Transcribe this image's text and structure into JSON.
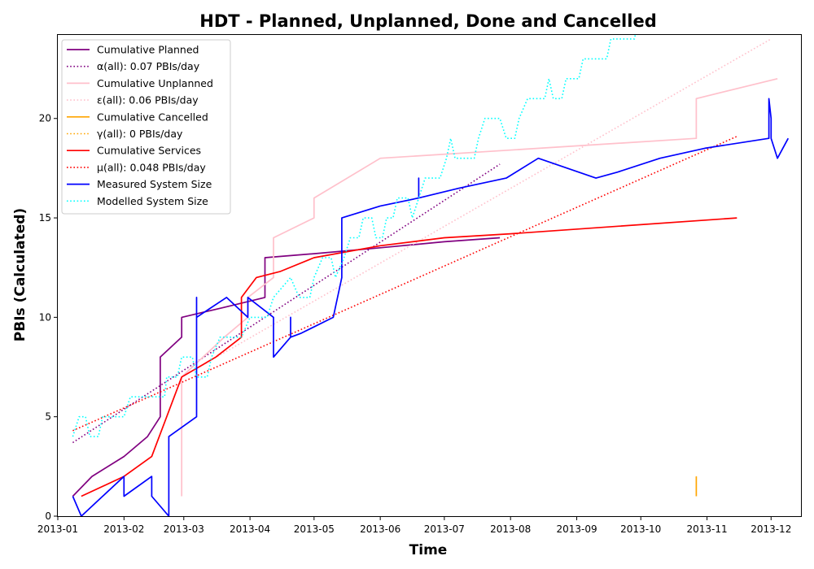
{
  "chart_data": {
    "type": "line",
    "title": "HDT - Planned, Unplanned, Done  and Cancelled",
    "xlabel": "Time",
    "ylabel": "PBIs (Calculated)",
    "xlim": [
      "2013-01-01",
      "2013-12-15"
    ],
    "ylim": [
      0,
      24.2
    ],
    "x_ticks": [
      "2013-01",
      "2013-02",
      "2013-03",
      "2013-04",
      "2013-05",
      "2013-06",
      "2013-07",
      "2013-08",
      "2013-09",
      "2013-10",
      "2013-11",
      "2013-12"
    ],
    "y_ticks": [
      0,
      5,
      10,
      15,
      20
    ],
    "grid": false,
    "legend_position": "upper-left",
    "series": [
      {
        "name": "Cumulative Planned",
        "color": "#800080",
        "style": "solid",
        "points": [
          [
            "2013-01-08",
            1
          ],
          [
            "2013-01-17",
            2
          ],
          [
            "2013-02-01",
            3
          ],
          [
            "2013-02-12",
            4
          ],
          [
            "2013-02-18",
            5
          ],
          [
            "2013-02-18",
            8
          ],
          [
            "2013-02-28",
            9
          ],
          [
            "2013-02-28",
            10
          ],
          [
            "2013-03-20",
            10.5
          ],
          [
            "2013-04-08",
            11
          ],
          [
            "2013-04-08",
            13
          ],
          [
            "2013-05-01",
            13.2
          ],
          [
            "2013-06-01",
            13.5
          ],
          [
            "2013-07-01",
            13.8
          ],
          [
            "2013-07-27",
            14
          ]
        ]
      },
      {
        "name": "α(all): 0.07 PBIs/day",
        "color": "#800080",
        "style": "dotted",
        "points": [
          [
            "2013-01-08",
            3.7
          ],
          [
            "2013-07-27",
            17.7
          ]
        ]
      },
      {
        "name": "Cumulative Unplanned",
        "color": "#ffc0cb",
        "style": "solid",
        "points": [
          [
            "2013-02-28",
            1
          ],
          [
            "2013-02-28",
            7
          ],
          [
            "2013-03-10",
            8
          ],
          [
            "2013-03-20",
            9
          ],
          [
            "2013-03-31",
            10
          ],
          [
            "2013-03-31",
            11
          ],
          [
            "2013-04-12",
            12
          ],
          [
            "2013-04-12",
            14
          ],
          [
            "2013-05-01",
            15
          ],
          [
            "2013-05-01",
            16
          ],
          [
            "2013-06-01",
            18
          ],
          [
            "2013-10-27",
            19
          ],
          [
            "2013-10-27",
            21
          ],
          [
            "2013-12-04",
            22
          ]
        ]
      },
      {
        "name": "ε(all): 0.06 PBIs/day",
        "color": "#ffc0cb",
        "style": "dotted",
        "points": [
          [
            "2013-02-28",
            7
          ],
          [
            "2013-12-01",
            24
          ]
        ]
      },
      {
        "name": "Cumulative Cancelled",
        "color": "#ffa500",
        "style": "solid",
        "points": [
          [
            "2013-10-27",
            1
          ],
          [
            "2013-10-27",
            2
          ]
        ]
      },
      {
        "name": "γ(all): 0 PBIs/day",
        "color": "#ffa500",
        "style": "dotted",
        "points": [
          [
            "2013-10-27",
            2
          ],
          [
            "2013-10-27",
            2
          ]
        ]
      },
      {
        "name": "Cumulative Services",
        "color": "#ff0000",
        "style": "solid",
        "points": [
          [
            "2013-01-12",
            1
          ],
          [
            "2013-02-01",
            2
          ],
          [
            "2013-02-14",
            3
          ],
          [
            "2013-02-28",
            7
          ],
          [
            "2013-03-16",
            8
          ],
          [
            "2013-03-28",
            9
          ],
          [
            "2013-03-28",
            11
          ],
          [
            "2013-04-04",
            12
          ],
          [
            "2013-04-15",
            12.3
          ],
          [
            "2013-05-01",
            13
          ],
          [
            "2013-06-01",
            13.6
          ],
          [
            "2013-07-01",
            14
          ],
          [
            "2013-08-01",
            14.2
          ],
          [
            "2013-11-15",
            15
          ]
        ]
      },
      {
        "name": "μ(all): 0.048 PBIs/day",
        "color": "#ff0000",
        "style": "dotted",
        "points": [
          [
            "2013-01-08",
            4.3
          ],
          [
            "2013-11-15",
            19.1
          ]
        ]
      },
      {
        "name": "Measured System Size",
        "color": "#0000ff",
        "style": "solid",
        "points": [
          [
            "2013-01-08",
            1
          ],
          [
            "2013-01-12",
            0
          ],
          [
            "2013-01-22",
            1
          ],
          [
            "2013-02-01",
            2
          ],
          [
            "2013-02-01",
            1
          ],
          [
            "2013-02-14",
            2
          ],
          [
            "2013-02-14",
            1
          ],
          [
            "2013-02-22",
            0
          ],
          [
            "2013-02-22",
            4
          ],
          [
            "2013-03-07",
            5
          ],
          [
            "2013-03-07",
            6
          ],
          [
            "2013-03-07",
            5
          ],
          [
            "2013-03-07",
            11
          ],
          [
            "2013-03-07",
            10
          ],
          [
            "2013-03-21",
            11
          ],
          [
            "2013-03-31",
            10
          ],
          [
            "2013-03-31",
            11
          ],
          [
            "2013-04-12",
            10
          ],
          [
            "2013-04-12",
            8
          ],
          [
            "2013-04-20",
            9
          ],
          [
            "2013-04-20",
            10
          ],
          [
            "2013-04-20",
            9
          ],
          [
            "2013-04-25",
            9.2
          ],
          [
            "2013-05-10",
            10
          ],
          [
            "2013-05-14",
            12
          ],
          [
            "2013-05-14",
            15
          ],
          [
            "2013-05-20",
            15.2
          ],
          [
            "2013-06-01",
            15.6
          ],
          [
            "2013-06-19",
            16
          ],
          [
            "2013-06-19",
            17
          ],
          [
            "2013-06-19",
            16
          ],
          [
            "2013-07-08",
            16.5
          ],
          [
            "2013-07-30",
            17
          ],
          [
            "2013-08-14",
            18
          ],
          [
            "2013-09-10",
            17
          ],
          [
            "2013-09-20",
            17.3
          ],
          [
            "2013-10-10",
            18
          ],
          [
            "2013-10-31",
            18.5
          ],
          [
            "2013-11-30",
            19
          ],
          [
            "2013-11-30",
            21
          ],
          [
            "2013-12-01",
            20
          ],
          [
            "2013-12-01",
            19
          ],
          [
            "2013-12-04",
            18
          ],
          [
            "2013-12-09",
            19
          ]
        ]
      },
      {
        "name": "Modelled System Size",
        "color": "#00ffff",
        "style": "dotted",
        "points": [
          [
            "2013-01-08",
            4
          ],
          [
            "2013-01-11",
            5
          ],
          [
            "2013-01-14",
            5
          ],
          [
            "2013-01-16",
            4
          ],
          [
            "2013-01-20",
            4
          ],
          [
            "2013-01-22",
            5
          ],
          [
            "2013-02-01",
            5
          ],
          [
            "2013-02-04",
            6
          ],
          [
            "2013-02-14",
            6
          ],
          [
            "2013-02-16",
            6
          ],
          [
            "2013-02-20",
            6
          ],
          [
            "2013-02-21",
            7
          ],
          [
            "2013-02-26",
            7
          ],
          [
            "2013-02-28",
            8
          ],
          [
            "2013-03-05",
            8
          ],
          [
            "2013-03-07",
            7
          ],
          [
            "2013-03-12",
            7
          ],
          [
            "2013-03-14",
            8
          ],
          [
            "2013-03-18",
            9
          ],
          [
            "2013-03-28",
            9
          ],
          [
            "2013-04-01",
            10
          ],
          [
            "2013-04-09",
            10
          ],
          [
            "2013-04-12",
            11
          ],
          [
            "2013-04-20",
            12
          ],
          [
            "2013-04-24",
            11
          ],
          [
            "2013-04-29",
            11
          ],
          [
            "2013-05-01",
            12
          ],
          [
            "2013-05-05",
            13
          ],
          [
            "2013-05-09",
            13
          ],
          [
            "2013-05-11",
            12
          ],
          [
            "2013-05-15",
            13
          ],
          [
            "2013-05-18",
            14
          ],
          [
            "2013-05-22",
            14
          ],
          [
            "2013-05-24",
            15
          ],
          [
            "2013-05-28",
            15
          ],
          [
            "2013-05-30",
            14
          ],
          [
            "2013-06-02",
            14
          ],
          [
            "2013-06-04",
            15
          ],
          [
            "2013-06-07",
            15
          ],
          [
            "2013-06-09",
            16
          ],
          [
            "2013-06-14",
            16
          ],
          [
            "2013-06-16",
            15
          ],
          [
            "2013-06-19",
            16
          ],
          [
            "2013-06-22",
            17
          ],
          [
            "2013-06-29",
            17
          ],
          [
            "2013-07-02",
            18
          ],
          [
            "2013-07-04",
            19
          ],
          [
            "2013-07-06",
            18
          ],
          [
            "2013-07-15",
            18
          ],
          [
            "2013-07-17",
            19
          ],
          [
            "2013-07-20",
            20
          ],
          [
            "2013-07-27",
            20
          ],
          [
            "2013-07-30",
            19
          ],
          [
            "2013-08-03",
            19
          ],
          [
            "2013-08-05",
            20
          ],
          [
            "2013-08-09",
            21
          ],
          [
            "2013-08-17",
            21
          ],
          [
            "2013-08-19",
            22
          ],
          [
            "2013-08-21",
            21
          ],
          [
            "2013-08-25",
            21
          ],
          [
            "2013-08-27",
            22
          ],
          [
            "2013-09-02",
            22
          ],
          [
            "2013-09-04",
            23
          ],
          [
            "2013-09-15",
            23
          ],
          [
            "2013-09-17",
            24
          ],
          [
            "2013-09-28",
            24
          ],
          [
            "2013-09-30",
            25
          ]
        ]
      }
    ]
  }
}
